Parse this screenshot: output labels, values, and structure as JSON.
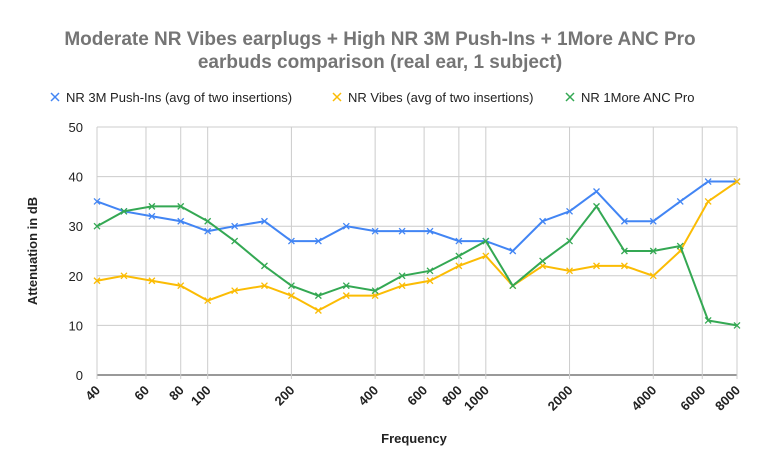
{
  "chart_data": {
    "type": "line",
    "title": [
      "Moderate NR Vibes earplugs + High NR 3M Push-Ins + 1More ANC Pro",
      "earbuds comparison (real ear, 1 subject)"
    ],
    "xlabel": "Frequency",
    "ylabel": "Attenuation in dB",
    "xscale": "log",
    "xlim": [
      40,
      8000
    ],
    "ylim": [
      0,
      50
    ],
    "yticks": [
      0,
      10,
      20,
      30,
      40,
      50
    ],
    "xticks": [
      40,
      60,
      80,
      100,
      200,
      400,
      600,
      800,
      1000,
      2000,
      4000,
      6000,
      8000
    ],
    "grid": true,
    "legend_position": "top",
    "x": [
      40,
      50,
      63,
      80,
      100,
      125,
      160,
      200,
      250,
      315,
      400,
      500,
      630,
      800,
      1000,
      1250,
      1600,
      2000,
      2500,
      3150,
      4000,
      5000,
      6300,
      8000
    ],
    "series": [
      {
        "name": "NR 3M Push-Ins (avg of two insertions)",
        "color": "#4285f4",
        "values": [
          35,
          33,
          32,
          31,
          29,
          30,
          31,
          27,
          27,
          30,
          29,
          29,
          29,
          27,
          27,
          25,
          31,
          33,
          37,
          31,
          31,
          35,
          39,
          39
        ]
      },
      {
        "name": "NR Vibes (avg of two insertions)",
        "color": "#fbbc04",
        "values": [
          19,
          20,
          19,
          18,
          15,
          17,
          18,
          16,
          13,
          16,
          16,
          18,
          19,
          22,
          24,
          18,
          22,
          21,
          22,
          22,
          20,
          25,
          35,
          39
        ]
      },
      {
        "name": "NR 1More ANC Pro",
        "color": "#34a853",
        "values": [
          30,
          33,
          34,
          34,
          31,
          27,
          22,
          18,
          16,
          18,
          17,
          20,
          21,
          24,
          27,
          18,
          23,
          27,
          34,
          25,
          25,
          26,
          11,
          10
        ]
      }
    ]
  }
}
